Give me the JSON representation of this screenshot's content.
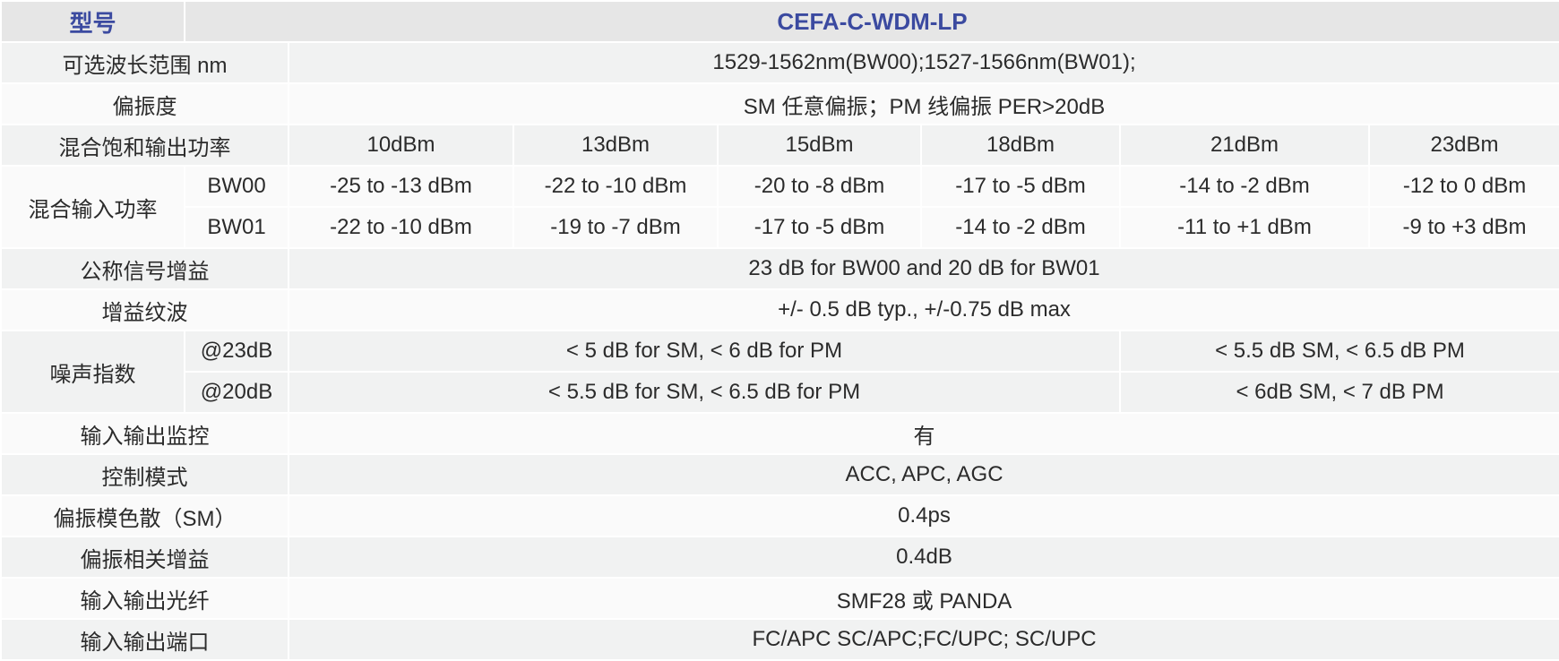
{
  "header": {
    "label": "型号",
    "model": "CEFA-C-WDM-LP"
  },
  "wavelength": {
    "label": "可选波长范围 nm",
    "value": "1529-1562nm(BW00);1527-1566nm(BW01);"
  },
  "polarization": {
    "label": "偏振度",
    "value": "SM 任意偏振；PM 线偏振 PER>20dB"
  },
  "saturated_power": {
    "label": "混合饱和输出功率",
    "values": [
      "10dBm",
      "13dBm",
      "15dBm",
      "18dBm",
      "21dBm",
      "23dBm"
    ]
  },
  "input_power": {
    "label": "混合输入功率",
    "rows": [
      {
        "band": "BW00",
        "values": [
          "-25 to -13 dBm",
          "-22 to -10 dBm",
          "-20 to -8 dBm",
          "-17 to -5 dBm",
          "-14 to -2 dBm",
          "-12 to 0 dBm"
        ]
      },
      {
        "band": "BW01",
        "values": [
          "-22 to -10 dBm",
          "-19 to -7 dBm",
          "-17 to -5 dBm",
          "-14 to -2 dBm",
          "-11 to +1 dBm",
          "-9 to +3 dBm"
        ]
      }
    ]
  },
  "gain": {
    "label": "公称信号增益",
    "value": "23 dB for BW00 and 20 dB for BW01"
  },
  "ripple": {
    "label": "增益纹波",
    "value": "+/- 0.5 dB typ., +/-0.75 dB max"
  },
  "noise": {
    "label": "噪声指数",
    "rows": [
      {
        "cond": "@23dB",
        "a": "< 5 dB for SM, < 6 dB for PM",
        "b": "< 5.5 dB SM, < 6.5 dB PM"
      },
      {
        "cond": "@20dB",
        "a": "< 5.5 dB for SM, < 6.5 dB for PM",
        "b": "< 6dB SM, < 7 dB PM"
      }
    ]
  },
  "monitor": {
    "label": "输入输出监控",
    "value": "有"
  },
  "control": {
    "label": "控制模式",
    "value": "ACC, APC, AGC"
  },
  "pmd": {
    "label": "偏振模色散（SM）",
    "value": "0.4ps"
  },
  "pdg": {
    "label": "偏振相关增益",
    "value": "0.4dB"
  },
  "fiber": {
    "label": "输入输出光纤",
    "value": "SMF28 或 PANDA"
  },
  "port": {
    "label": "输入输出端口",
    "value": "FC/APC SC/APC;FC/UPC; SC/UPC"
  }
}
